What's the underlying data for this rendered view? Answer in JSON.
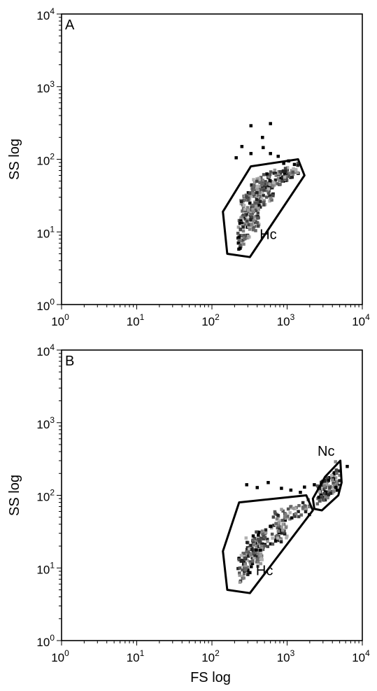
{
  "figure": {
    "xlabel": "FS log"
  },
  "chart_data": [
    {
      "type": "scatter",
      "panel_label": "A",
      "xscale": "log",
      "yscale": "log",
      "xlim": [
        1,
        10000
      ],
      "ylim": [
        1,
        10000
      ],
      "xticks": [
        {
          "value": 1,
          "base": "10",
          "exp": "0"
        },
        {
          "value": 10,
          "base": "10",
          "exp": "1"
        },
        {
          "value": 100,
          "base": "10",
          "exp": "2"
        },
        {
          "value": 1000,
          "base": "10",
          "exp": "3"
        },
        {
          "value": 10000,
          "base": "10",
          "exp": "4"
        }
      ],
      "yticks": [
        {
          "value": 1,
          "base": "10",
          "exp": "0"
        },
        {
          "value": 10,
          "base": "10",
          "exp": "1"
        },
        {
          "value": 100,
          "base": "10",
          "exp": "2"
        },
        {
          "value": 1000,
          "base": "10",
          "exp": "3"
        },
        {
          "value": 10000,
          "base": "10",
          "exp": "4"
        }
      ],
      "ylabel": "SS log",
      "xlabel": "",
      "gates": [
        {
          "label": "Hc",
          "label_at": [
            560,
            8
          ],
          "polygon": [
            [
              160,
              5
            ],
            [
              320,
              4.5
            ],
            [
              1700,
              60
            ],
            [
              1400,
              100
            ],
            [
              330,
              80
            ],
            [
              140,
              19
            ]
          ]
        }
      ],
      "points": [
        {
          "x": 330,
          "y": 290,
          "shade": "black"
        },
        {
          "x": 600,
          "y": 310,
          "shade": "black"
        },
        {
          "x": 470,
          "y": 200,
          "shade": "black"
        },
        {
          "x": 250,
          "y": 150,
          "shade": "black"
        },
        {
          "x": 210,
          "y": 105,
          "shade": "black"
        },
        {
          "x": 330,
          "y": 120,
          "shade": "black"
        },
        {
          "x": 480,
          "y": 145,
          "shade": "black"
        },
        {
          "x": 600,
          "y": 120,
          "shade": "black"
        },
        {
          "x": 760,
          "y": 110,
          "shade": "black"
        },
        {
          "x": 1050,
          "y": 95,
          "shade": "black"
        },
        {
          "x": 1250,
          "y": 85,
          "shade": "black"
        },
        {
          "x": 900,
          "y": 88,
          "shade": "black"
        }
      ],
      "clusters": [
        {
          "x1": 220,
          "x2": 420,
          "y1": 5.5,
          "y2": 30,
          "n": 110
        },
        {
          "x1": 240,
          "x2": 650,
          "y1": 15,
          "y2": 55,
          "n": 110
        },
        {
          "x1": 330,
          "x2": 1000,
          "y1": 30,
          "y2": 85,
          "n": 90
        },
        {
          "x1": 700,
          "x2": 1400,
          "y1": 45,
          "y2": 90,
          "n": 45
        }
      ]
    },
    {
      "type": "scatter",
      "panel_label": "B",
      "xscale": "log",
      "yscale": "log",
      "xlim": [
        1,
        10000
      ],
      "ylim": [
        1,
        10000
      ],
      "xticks": [
        {
          "value": 1,
          "base": "10",
          "exp": "0"
        },
        {
          "value": 10,
          "base": "10",
          "exp": "1"
        },
        {
          "value": 100,
          "base": "10",
          "exp": "2"
        },
        {
          "value": 1000,
          "base": "10",
          "exp": "3"
        },
        {
          "value": 10000,
          "base": "10",
          "exp": "4"
        }
      ],
      "yticks": [
        {
          "value": 1,
          "base": "10",
          "exp": "0"
        },
        {
          "value": 10,
          "base": "10",
          "exp": "1"
        },
        {
          "value": 100,
          "base": "10",
          "exp": "2"
        },
        {
          "value": 1000,
          "base": "10",
          "exp": "3"
        },
        {
          "value": 10000,
          "base": "10",
          "exp": "4"
        }
      ],
      "ylabel": "SS log",
      "xlabel": "FS log",
      "gates": [
        {
          "label": "Hc",
          "label_at": [
            500,
            8
          ],
          "polygon": [
            [
              160,
              5
            ],
            [
              320,
              4.5
            ],
            [
              2200,
              62
            ],
            [
              1800,
              100
            ],
            [
              230,
              80
            ],
            [
              140,
              17
            ]
          ]
        },
        {
          "label": "Nc",
          "label_at": [
            3300,
            350
          ],
          "polygon": [
            [
              2300,
              65
            ],
            [
              2900,
              62
            ],
            [
              4800,
              100
            ],
            [
              5300,
              150
            ],
            [
              5100,
              300
            ],
            [
              3200,
              180
            ],
            [
              2200,
              90
            ]
          ]
        }
      ],
      "points": [
        {
          "x": 290,
          "y": 140,
          "shade": "black"
        },
        {
          "x": 400,
          "y": 128,
          "shade": "black"
        },
        {
          "x": 560,
          "y": 150,
          "shade": "black"
        },
        {
          "x": 840,
          "y": 125,
          "shade": "black"
        },
        {
          "x": 1120,
          "y": 118,
          "shade": "black"
        },
        {
          "x": 1700,
          "y": 130,
          "shade": "black"
        },
        {
          "x": 2300,
          "y": 140,
          "shade": "black"
        },
        {
          "x": 1500,
          "y": 110,
          "shade": "black"
        },
        {
          "x": 6300,
          "y": 250,
          "shade": "black"
        },
        {
          "x": 4400,
          "y": 290,
          "shade": "gray"
        }
      ],
      "clusters": [
        {
          "x1": 220,
          "x2": 480,
          "y1": 6,
          "y2": 30,
          "n": 110
        },
        {
          "x1": 280,
          "x2": 1000,
          "y1": 14,
          "y2": 50,
          "n": 100
        },
        {
          "x1": 650,
          "x2": 2000,
          "y1": 35,
          "y2": 90,
          "n": 50
        },
        {
          "x1": 2500,
          "x2": 5000,
          "y1": 70,
          "y2": 250,
          "n": 110
        }
      ]
    }
  ]
}
